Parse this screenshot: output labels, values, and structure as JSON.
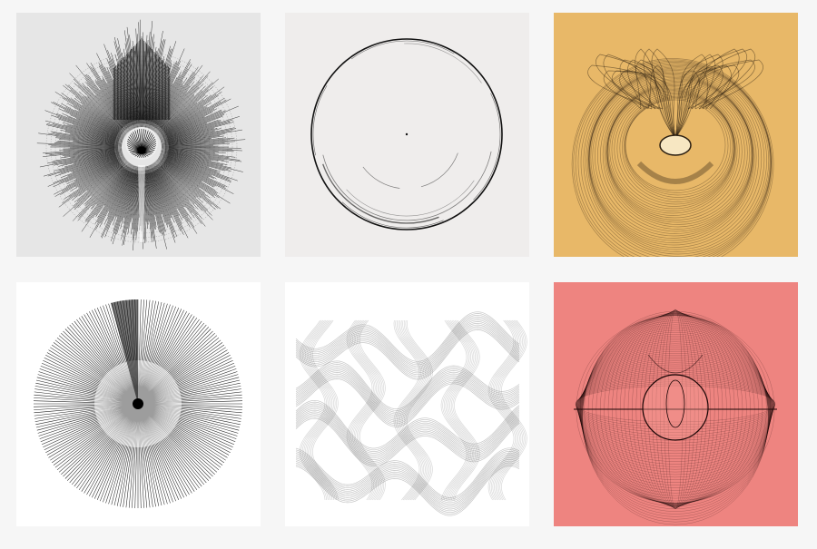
{
  "gallery": {
    "tiles": [
      {
        "subject": "radial-spikes-artwork",
        "background": "#e6e6e6"
      },
      {
        "subject": "thin-ring-artwork",
        "background": "#efedec"
      },
      {
        "subject": "ribbon-vase-artwork",
        "background": "#e8b868"
      },
      {
        "subject": "ray-fan-circle-artwork",
        "background": "#ffffff"
      },
      {
        "subject": "woven-ribbon-lattice-artwork",
        "background": "#ffffff"
      },
      {
        "subject": "mesh-sphere-artwork",
        "background": "#ee8480"
      }
    ]
  }
}
